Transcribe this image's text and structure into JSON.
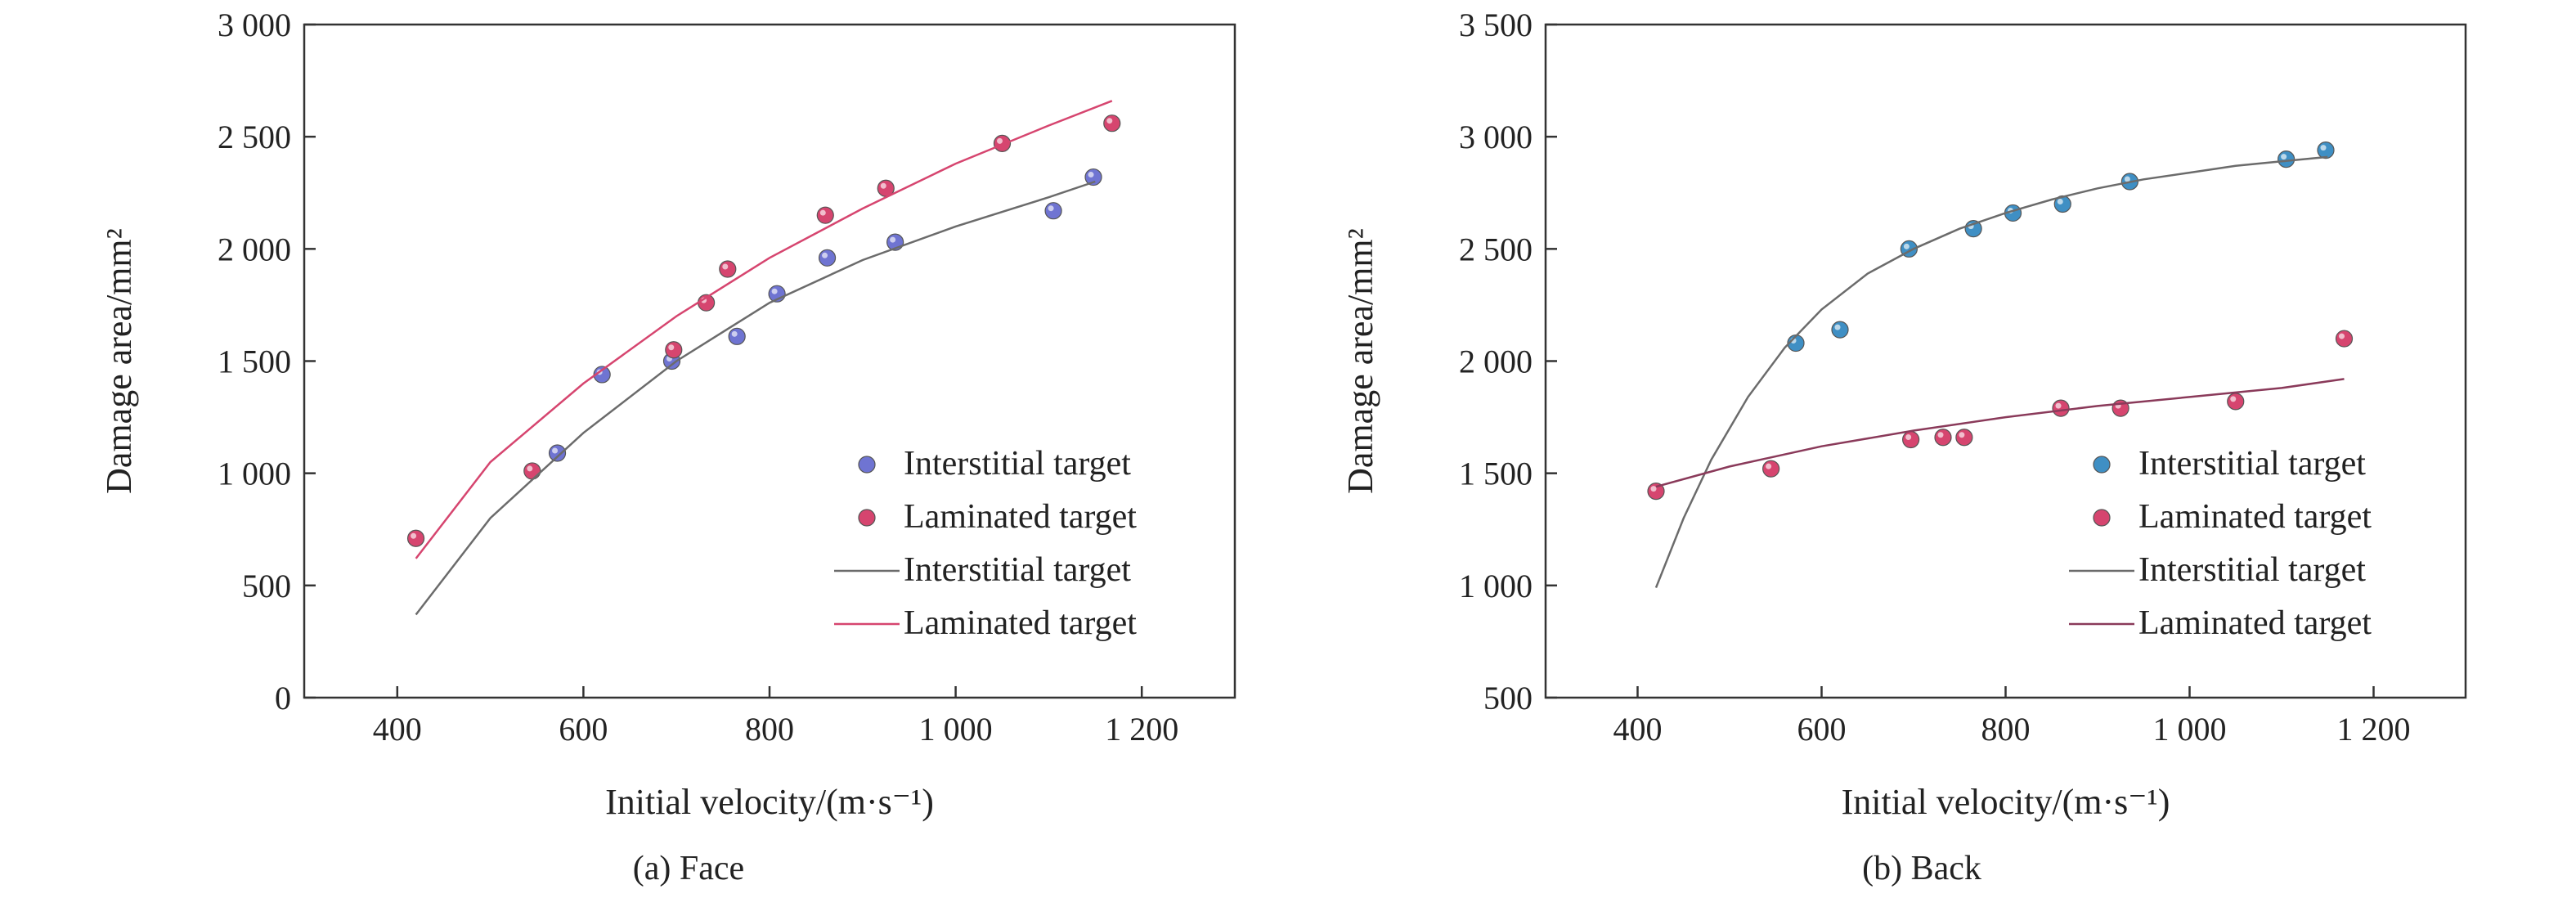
{
  "figure": {
    "captions": [
      "(a) Face",
      "(b) Back"
    ]
  },
  "colors": {
    "interstitial_marker": "#6f74d2",
    "interstitial_marker_b": "#3f8fc4",
    "laminated_marker": "#d6456f",
    "interstitial_fit": "#6b6b6b",
    "laminated_fit_a": "#d6456f",
    "laminated_fit_b": "#8a3a5a",
    "axis": "#333333"
  },
  "chart_data": [
    {
      "type": "scatter",
      "panel": "a",
      "caption": "(a) Face",
      "xlabel": "Initial velocity/(m·s⁻¹)",
      "ylabel": "Damage area/mm²",
      "xlim": [
        300,
        1300
      ],
      "ylim": [
        0,
        3000
      ],
      "xticks": [
        400,
        600,
        800,
        1000,
        1200
      ],
      "xtick_labels": [
        "400",
        "600",
        "800",
        "1 000",
        "1 200"
      ],
      "yticks": [
        0,
        500,
        1000,
        1500,
        2000,
        2500,
        3000
      ],
      "ytick_labels": [
        "0",
        "500",
        "1 000",
        "1 500",
        "2 000",
        "2 500",
        "3 000"
      ],
      "legend_position": "bottom-right",
      "legend": [
        "Interstitial target",
        "Laminated target",
        "Interstitial target",
        "Laminated target"
      ],
      "series": [
        {
          "name": "Interstitial target",
          "kind": "points",
          "x": [
            572,
            620,
            695,
            765,
            808,
            862,
            935,
            1105,
            1148
          ],
          "y": [
            1090,
            1440,
            1500,
            1610,
            1800,
            1960,
            2030,
            2170,
            2320
          ]
        },
        {
          "name": "Laminated target",
          "kind": "points",
          "x": [
            420,
            545,
            697,
            732,
            755,
            860,
            925,
            1050,
            1168
          ],
          "y": [
            710,
            1010,
            1550,
            1760,
            1910,
            2150,
            2270,
            2470,
            2560
          ]
        },
        {
          "name": "Interstitial target",
          "kind": "fit",
          "x": [
            420,
            500,
            600,
            700,
            800,
            900,
            1000,
            1100,
            1150
          ],
          "y": [
            370,
            800,
            1180,
            1500,
            1760,
            1950,
            2100,
            2230,
            2300
          ]
        },
        {
          "name": "Laminated target",
          "kind": "fit",
          "x": [
            420,
            500,
            600,
            700,
            800,
            900,
            1000,
            1100,
            1168
          ],
          "y": [
            620,
            1050,
            1400,
            1700,
            1960,
            2180,
            2380,
            2550,
            2660
          ]
        }
      ]
    },
    {
      "type": "scatter",
      "panel": "b",
      "caption": "(b) Back",
      "xlabel": "Initial velocity/(m·s⁻¹)",
      "ylabel": "Damage area/mm²",
      "xlim": [
        300,
        1300
      ],
      "ylim": [
        500,
        3500
      ],
      "xticks": [
        400,
        600,
        800,
        1000,
        1200
      ],
      "xtick_labels": [
        "400",
        "600",
        "800",
        "1 000",
        "1 200"
      ],
      "yticks": [
        500,
        1000,
        1500,
        2000,
        2500,
        3000,
        3500
      ],
      "ytick_labels": [
        "500",
        "1 000",
        "1 500",
        "2 000",
        "2 500",
        "3 000",
        "3 500"
      ],
      "legend_position": "bottom-right",
      "legend": [
        "Interstitial target",
        "Laminated target",
        "Interstitial target",
        "Laminated target"
      ],
      "series": [
        {
          "name": "Interstitial target",
          "kind": "points",
          "x": [
            572,
            620,
            695,
            765,
            808,
            862,
            935,
            1105,
            1148
          ],
          "y": [
            2080,
            2140,
            2500,
            2590,
            2660,
            2700,
            2800,
            2900,
            2940
          ]
        },
        {
          "name": "Laminated target",
          "kind": "points",
          "x": [
            420,
            545,
            697,
            732,
            755,
            860,
            925,
            1050,
            1168
          ],
          "y": [
            1420,
            1520,
            1650,
            1660,
            1660,
            1790,
            1790,
            1820,
            2100
          ]
        },
        {
          "name": "Interstitial target",
          "kind": "fit",
          "x": [
            420,
            450,
            480,
            520,
            560,
            600,
            650,
            700,
            750,
            800,
            850,
            900,
            950,
            1000,
            1050,
            1100,
            1150
          ],
          "y": [
            990,
            1300,
            1560,
            1840,
            2060,
            2230,
            2390,
            2500,
            2590,
            2660,
            2720,
            2770,
            2810,
            2840,
            2870,
            2890,
            2910
          ]
        },
        {
          "name": "Laminated target",
          "kind": "fit",
          "x": [
            420,
            500,
            600,
            700,
            800,
            900,
            1000,
            1100,
            1168
          ],
          "y": [
            1440,
            1530,
            1620,
            1690,
            1750,
            1800,
            1840,
            1880,
            1920
          ]
        }
      ]
    }
  ]
}
